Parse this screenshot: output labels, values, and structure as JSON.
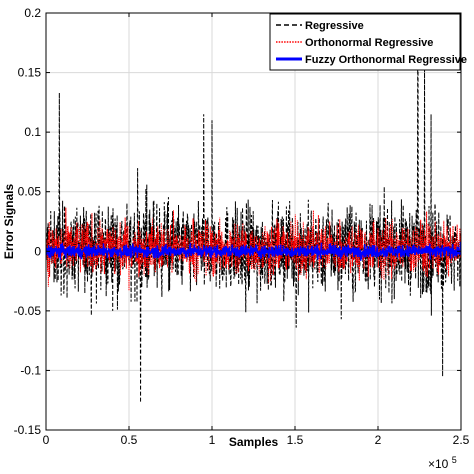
{
  "chart_data": {
    "type": "line",
    "title": "",
    "xlabel": "Samples",
    "ylabel": "Error Signals",
    "x_exponent_label": "×10",
    "x_exponent_power": "5",
    "xlim": [
      0,
      2.5
    ],
    "ylim": [
      -0.15,
      0.2
    ],
    "x_scale": 100000,
    "grid": true,
    "legend_position": "top-right",
    "x_ticks": [
      "0",
      "0.5",
      "1",
      "1.5",
      "2",
      "2.5"
    ],
    "x_tick_values": [
      0,
      0.5,
      1,
      1.5,
      2,
      2.5
    ],
    "y_ticks": [
      "-0.15",
      "-0.1",
      "-0.05",
      "0",
      "0.05",
      "0.1",
      "0.15",
      "0.2"
    ],
    "y_tick_values": [
      -0.15,
      -0.1,
      -0.05,
      0,
      0.05,
      0.1,
      0.15,
      0.2
    ],
    "series": [
      {
        "name": "Regressive",
        "color": "#000000",
        "style": "dashed",
        "typical_range": [
          -0.065,
          0.07
        ],
        "peaks": [
          {
            "x": 0.08,
            "y": 0.133
          },
          {
            "x": 0.57,
            "y": -0.127
          },
          {
            "x": 0.95,
            "y": 0.115
          },
          {
            "x": 1.0,
            "y": 0.11
          },
          {
            "x": 2.24,
            "y": 0.162
          },
          {
            "x": 2.28,
            "y": 0.155
          },
          {
            "x": 2.32,
            "y": 0.115
          },
          {
            "x": 2.39,
            "y": -0.105
          }
        ]
      },
      {
        "name": "Orthonormal Regressive",
        "color": "#ff0000",
        "style": "dotted",
        "typical_range": [
          -0.04,
          0.045
        ]
      },
      {
        "name": "Fuzzy Orthonormal Regressive",
        "color": "#0000ff",
        "style": "solid",
        "typical_range": [
          -0.01,
          0.01
        ]
      }
    ]
  }
}
